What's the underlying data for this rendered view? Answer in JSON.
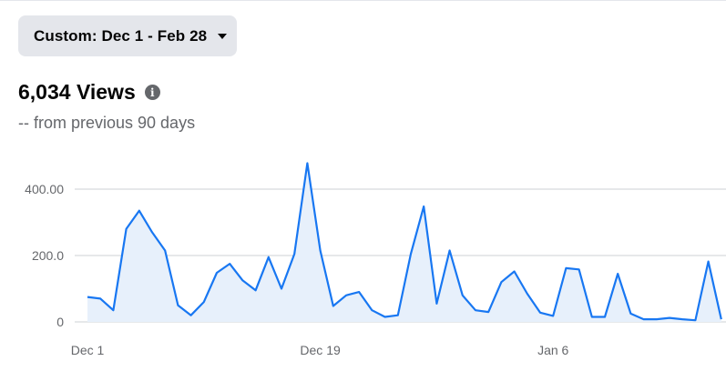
{
  "date_range": {
    "label": "Custom: Dec 1 - Feb 28"
  },
  "summary": {
    "views_title": "6,034 Views",
    "comparison": "-- from previous 90 days"
  },
  "icons": {
    "caret": "caret-down-icon",
    "info": "info-icon"
  },
  "colors": {
    "line": "#1877f2",
    "fill": "#e7f0fb",
    "grid": "#ccd0d5",
    "axis_text": "#65676b"
  },
  "chart_data": {
    "type": "area",
    "x_labels": [
      {
        "day_index": 0,
        "label": "Dec 1"
      },
      {
        "day_index": 18,
        "label": "Dec 19"
      },
      {
        "day_index": 36,
        "label": "Jan 6"
      }
    ],
    "y_ticks": [
      {
        "value": 0,
        "label": "0"
      },
      {
        "value": 200,
        "label": "200.0"
      },
      {
        "value": 400,
        "label": "400.00"
      }
    ],
    "ylim": [
      0,
      480
    ],
    "values": [
      75,
      70,
      35,
      280,
      335,
      270,
      215,
      50,
      20,
      60,
      148,
      175,
      125,
      95,
      195,
      100,
      205,
      478,
      215,
      48,
      80,
      90,
      35,
      15,
      20,
      205,
      348,
      55,
      215,
      80,
      35,
      30,
      120,
      152,
      85,
      28,
      18,
      162,
      158,
      15,
      15,
      145,
      25,
      8,
      8,
      12,
      8,
      5,
      182,
      8
    ]
  }
}
